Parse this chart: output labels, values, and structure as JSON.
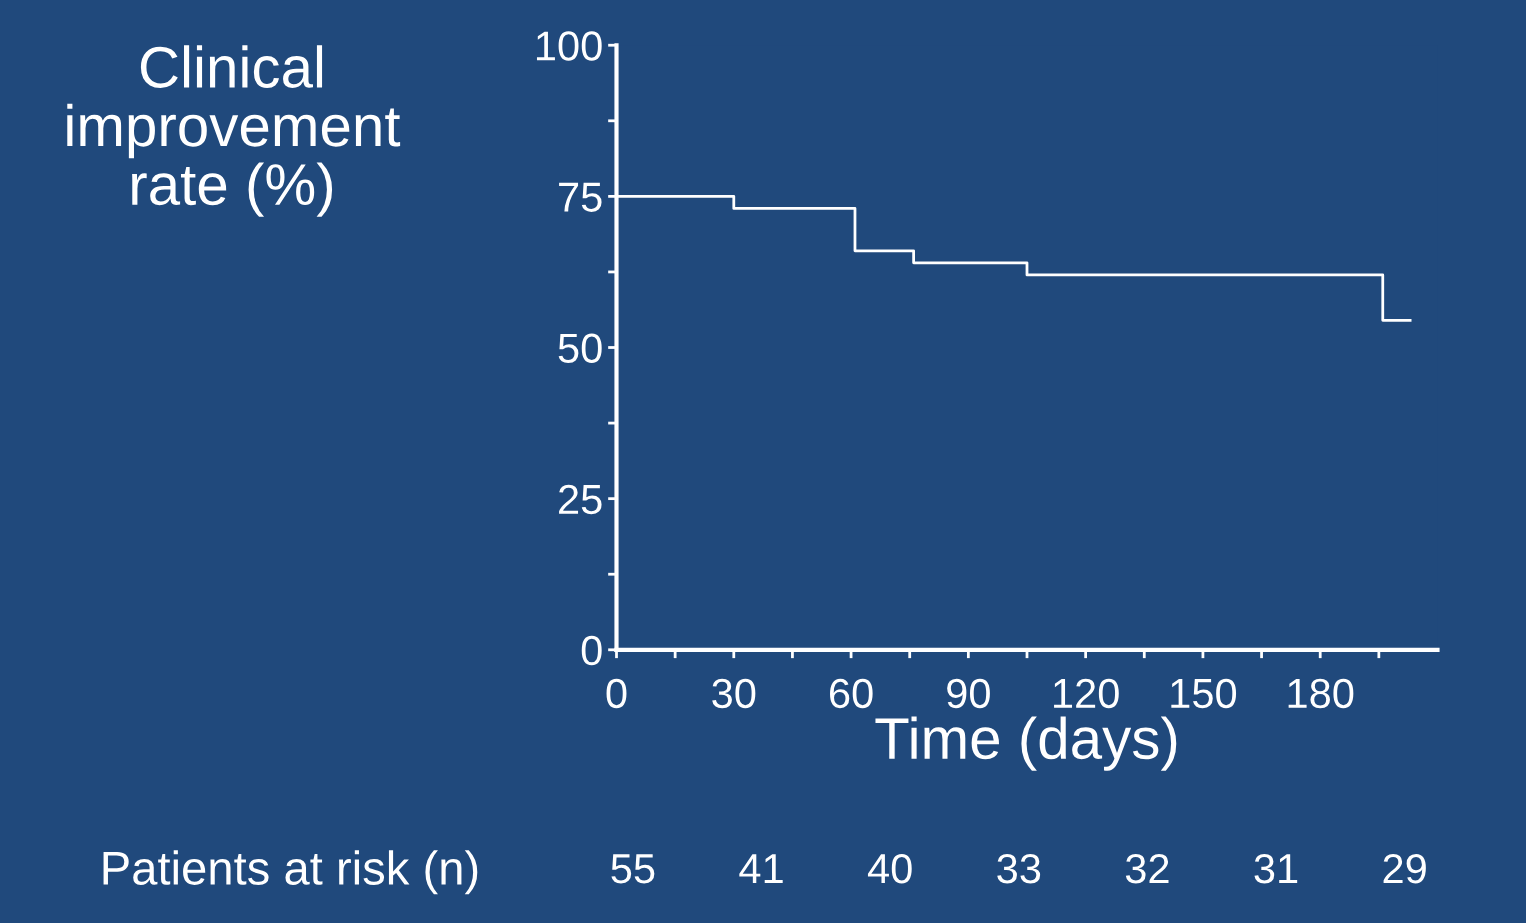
{
  "chart_data": {
    "type": "step",
    "xlabel": "Time (days)",
    "ylabel": "Clinical\nimprovement\nrate (%)",
    "x": [
      0,
      30,
      61,
      76,
      105,
      196,
      203
    ],
    "series": [
      {
        "color": "#ffffff",
        "values": [
          75,
          73,
          66,
          64,
          62,
          54.5,
          54.5
        ]
      }
    ],
    "xlim": [
      0,
      210
    ],
    "ylim": [
      0,
      100
    ],
    "xticks": [
      0,
      {
        "value": 15,
        "label": null
      },
      30,
      {
        "value": 45,
        "label": null
      },
      60,
      {
        "value": 75,
        "label": null
      },
      90,
      {
        "value": 105,
        "label": null
      },
      120,
      {
        "value": 135,
        "label": null
      },
      150,
      {
        "value": 165,
        "label": null
      },
      180,
      {
        "value": 195,
        "label": null
      }
    ],
    "yticks": [
      0,
      {
        "value": 12.5,
        "label": null
      },
      25,
      {
        "value": 37.5,
        "label": null
      },
      50,
      {
        "value": 62.5,
        "label": null
      },
      75,
      {
        "value": 87.5,
        "label": null
      },
      100
    ],
    "grid": false,
    "legend": false,
    "annotations": [
      "Patients at risk (n)",
      "55",
      "41",
      "40",
      "33",
      "32",
      "31",
      "29"
    ]
  }
}
